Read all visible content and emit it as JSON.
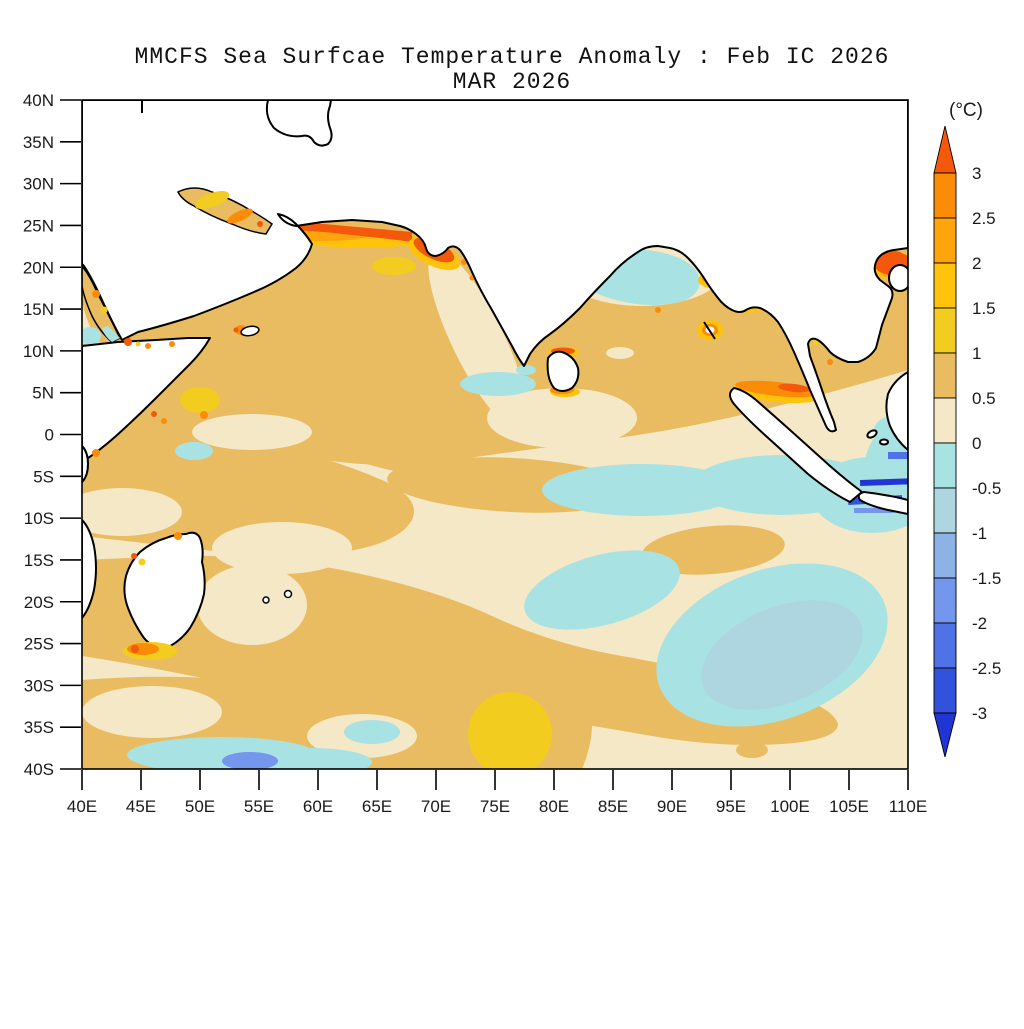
{
  "figure": {
    "title": "MMCFS Sea Surfcae Temperature Anomaly : Feb IC 2026",
    "subtitle": "MAR 2026"
  },
  "chart_data": {
    "type": "heatmap",
    "subtype": "filled-contour geographic map (sea surface temperature anomaly)",
    "title": "MMCFS Sea Surfcae Temperature Anomaly : Feb IC 2026",
    "subtitle": "MAR 2026",
    "x_axis": {
      "tick_labels": [
        "40E",
        "45E",
        "50E",
        "55E",
        "60E",
        "65E",
        "70E",
        "75E",
        "80E",
        "85E",
        "90E",
        "95E",
        "100E",
        "105E",
        "110E"
      ],
      "range_deg_east": [
        40,
        110
      ]
    },
    "y_axis": {
      "tick_labels": [
        "40N",
        "35N",
        "30N",
        "25N",
        "20N",
        "15N",
        "10N",
        "5N",
        "0",
        "5S",
        "10S",
        "15S",
        "20S",
        "25S",
        "30S",
        "35S",
        "40S"
      ],
      "range_deg_north": [
        -40,
        40
      ]
    },
    "grid": false,
    "colorbar": {
      "title": "(°C)",
      "position": "right",
      "tick_labels": [
        "3",
        "2.5",
        "2",
        "1.5",
        "1",
        "0.5",
        "0",
        "-0.5",
        "-1",
        "-1.5",
        "-2",
        "-2.5",
        "-3"
      ],
      "levels": [
        3,
        2.5,
        2,
        1.5,
        1,
        0.5,
        0,
        -0.5,
        -1,
        -1.5,
        -2,
        -2.5,
        -3
      ],
      "segment_colors_top_to_bottom": [
        "#FB8C07",
        "#FFA40D",
        "#FFC30B",
        "#F2CD1F",
        "#E9BC62",
        "#F4E8C6",
        "#A9E2E2",
        "#ADD6E0",
        "#8CB2E6",
        "#7496EC",
        "#4F72E7",
        "#3252DC"
      ],
      "arrow_top_color": "#F4590B",
      "arrow_bottom_color": "#2134D4"
    },
    "palette": {
      "land": "#FFFFFF",
      "coastline": "#000000",
      "warm_0_05": "#F4E8C6",
      "warm_05_1": "#E9BC62",
      "warm_1_15": "#F2CD1F",
      "warm_15_2": "#FFC30B",
      "warm_2_25": "#FFA40D",
      "warm_25_3": "#FB8C07",
      "warm_gt_3": "#F4590B",
      "cool_m05_0": "#A9E2E2",
      "cool_m1_m05": "#ADD6E0",
      "cool_m15_m1": "#8CB2E6",
      "cool_m2_m15": "#7496EC",
      "cool_m25_m2": "#4F72E7",
      "cool_m3_m25": "#3252DC",
      "cool_lt_m3": "#2134D4"
    },
    "anomaly_features": [
      {
        "area": "Makran coast, northern Arabian Sea (~25N, 57-68E)",
        "anomaly_c": "+2.5 to >+3"
      },
      {
        "area": "Persian Gulf and Gulf of Oman",
        "anomaly_c": "+1 to +3"
      },
      {
        "area": "Gujarat / Kutch coastal spots (~22N, 66-70E)",
        "anomaly_c": "+2 to >+3"
      },
      {
        "area": "Most of Arabian Sea and northern Indian Ocean",
        "anomaly_c": "+0.5 to +1"
      },
      {
        "area": "Strip along west coast of India",
        "anomaly_c": "0 to +0.5"
      },
      {
        "area": "Head of Bay of Bengal (~16-20N, 83-92E)",
        "anomaly_c": "-0.5 to 0"
      },
      {
        "area": "Coast north of Sumatra (~5N, 95-100E)",
        "anomaly_c": "+2 to >+3"
      },
      {
        "area": "Gulf of Tonkin (~20N, 105-110E)",
        "anomaly_c": "+2 to >+3"
      },
      {
        "area": "South equatorial band (8-15S, 68-110E)",
        "anomaly_c": "-0.5 to 0"
      },
      {
        "area": "Southeast basin (15-30S, 83-107E)",
        "anomaly_c": "-0.5 to -1"
      },
      {
        "area": "Coastal spots south of Java",
        "anomaly_c": "-2 to <-3"
      },
      {
        "area": "Spot south of Madagascar (~26S)",
        "anomaly_c": "+1.5 to >+3"
      },
      {
        "area": "Southwest basin (14-31S, 40-80E)",
        "anomaly_c": "+0.5 to +1"
      },
      {
        "area": "Patch near 35S, 73-78E",
        "anomaly_c": "+1 to +1.5"
      },
      {
        "area": "Far-south strip (38-40S, 45-60E)",
        "anomaly_c": "-0.5 to -2"
      }
    ],
    "land_features_shown": [
      "Arabian Peninsula",
      "Iran-Pakistan coast",
      "India",
      "Sri Lanka",
      "Bangladesh-Myanmar",
      "Indochina",
      "Malay Peninsula",
      "Sumatra",
      "Java",
      "Borneo (edge)",
      "Hainan",
      "Horn of Africa",
      "East African coast",
      "Madagascar",
      "Socotra",
      "Andaman Islands",
      "Mauritius/Reunion",
      "Caspian shoreline fragment"
    ]
  }
}
